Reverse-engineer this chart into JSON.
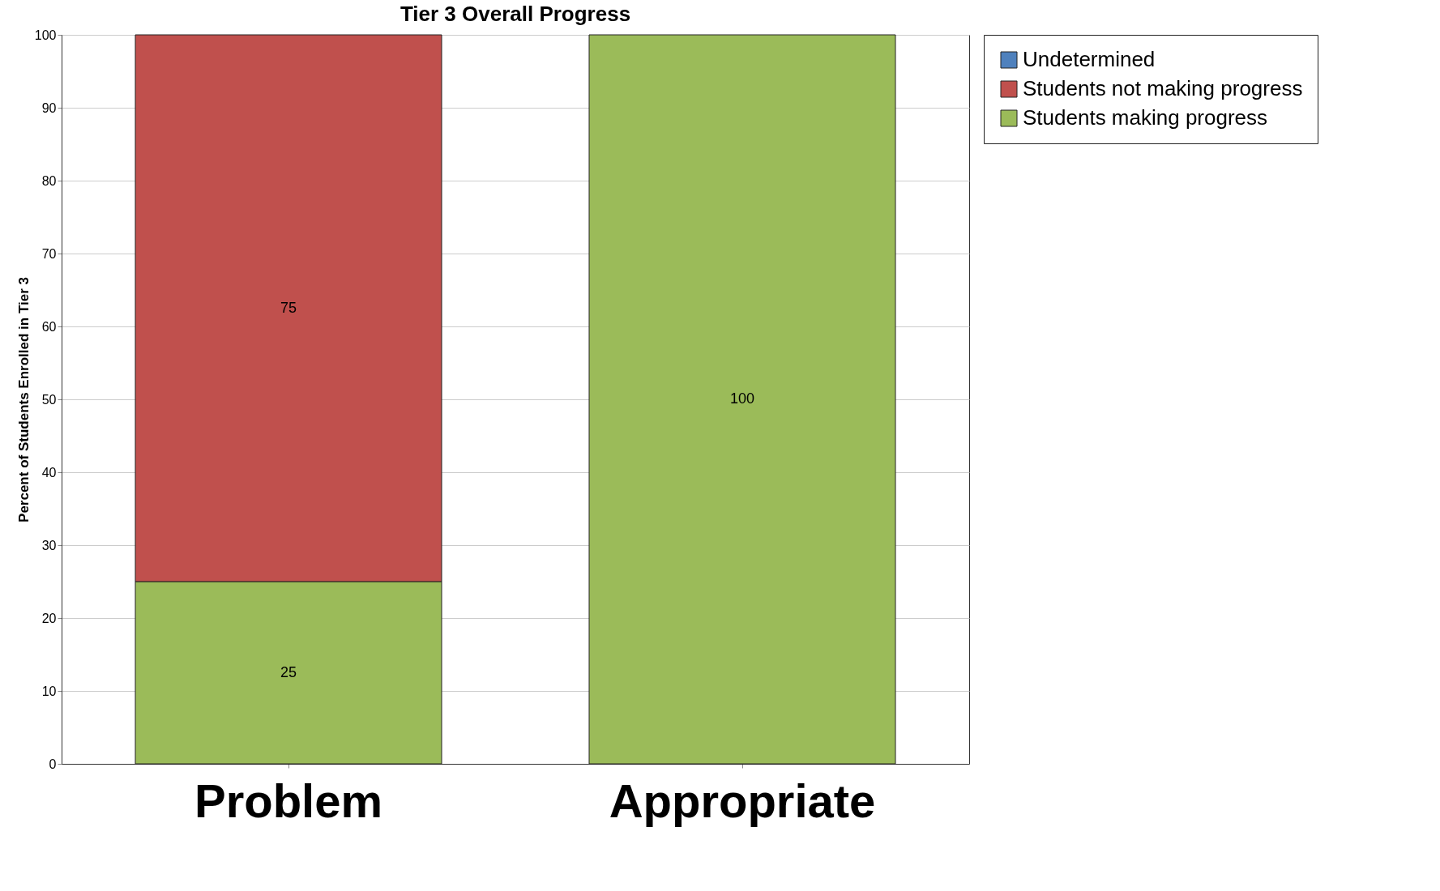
{
  "chart_data": {
    "type": "bar",
    "title": "Tier 3 Overall Progress",
    "ylabel": "Percent of Students Enrolled in Tier 3",
    "categories": [
      "Problem",
      "Appropriate"
    ],
    "stacked": true,
    "series": [
      {
        "name": "Students making progress",
        "color": "#9bbb59",
        "values": [
          25,
          100
        ],
        "value_labels": [
          "25",
          "100"
        ]
      },
      {
        "name": "Students not making progress",
        "color": "#c0504d",
        "values": [
          75,
          0
        ],
        "value_labels": [
          "75",
          null
        ]
      },
      {
        "name": "Undetermined",
        "color": "#4f81bd",
        "values": [
          0,
          0
        ],
        "value_labels": [
          null,
          null
        ]
      }
    ],
    "ylim": [
      0,
      100
    ],
    "yticks": [
      0,
      10,
      20,
      30,
      40,
      50,
      60,
      70,
      80,
      90,
      100
    ],
    "grid": "y",
    "legend": "right"
  }
}
